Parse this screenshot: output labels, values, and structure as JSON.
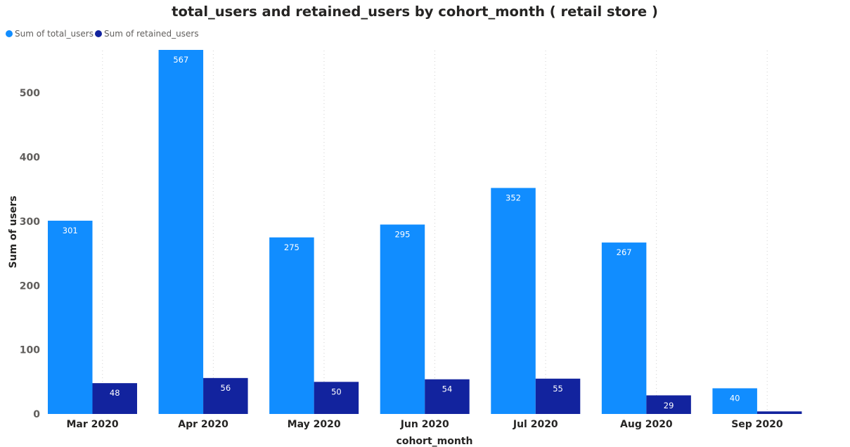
{
  "chart_data": {
    "type": "bar",
    "title": "total_users and retained_users by cohort_month ( retail store )",
    "xlabel": "cohort_month",
    "ylabel": "Sum of users",
    "categories": [
      "Mar 2020",
      "Apr 2020",
      "May 2020",
      "Jun 2020",
      "Jul 2020",
      "Aug 2020",
      "Sep 2020"
    ],
    "series": [
      {
        "name": "Sum of total_users",
        "color": "#118dff",
        "values": [
          301,
          567,
          275,
          295,
          352,
          267,
          40
        ],
        "labels": [
          "301",
          "567",
          "275",
          "295",
          "352",
          "267",
          "40"
        ]
      },
      {
        "name": "Sum of retained_users",
        "color": "#12239e",
        "values": [
          48,
          56,
          50,
          54,
          55,
          29,
          4
        ],
        "labels": [
          "48",
          "56",
          "50",
          "54",
          "55",
          "29",
          ""
        ]
      }
    ],
    "ylim": [
      0,
      567
    ],
    "yticks": [
      0,
      100,
      200,
      300,
      400,
      500
    ],
    "ytick_labels": [
      "0",
      "100",
      "200",
      "300",
      "400",
      "500"
    ],
    "legend_position": "top-left",
    "grid": "vertical dotted separators between categories"
  }
}
